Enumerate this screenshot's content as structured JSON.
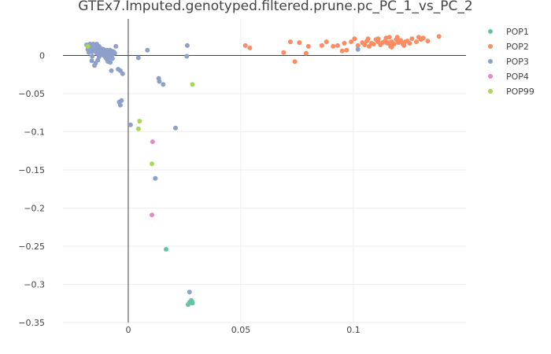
{
  "chart_data": {
    "type": "scatter",
    "title": "GTEx7.Imputed.genotyped.filtered.prune.pc_PC_1_vs_PC_2",
    "xlabel": "",
    "ylabel": "",
    "xlim": [
      -0.029,
      0.15
    ],
    "ylim": [
      -0.35,
      0.048
    ],
    "xticks": [
      0,
      0.05,
      0.1
    ],
    "xtick_labels": [
      "0",
      "0.05",
      "0.1"
    ],
    "yticks": [
      0,
      -0.05,
      -0.1,
      -0.15,
      -0.2,
      -0.25,
      -0.3,
      -0.35
    ],
    "ytick_labels": [
      "0",
      "−0.05",
      "−0.1",
      "−0.15",
      "−0.2",
      "−0.25",
      "−0.3",
      "−0.35"
    ],
    "grid": true,
    "legend_position": "top-right",
    "series": [
      {
        "name": "POP1",
        "color": "#66c2a5",
        "points": [
          [
            0.0168,
            -0.254
          ],
          [
            0.0266,
            -0.3265
          ],
          [
            0.0272,
            -0.3235
          ],
          [
            0.028,
            -0.321
          ],
          [
            0.0285,
            -0.3245
          ],
          [
            0.0276,
            -0.324
          ],
          [
            0.0283,
            -0.3225
          ]
        ]
      },
      {
        "name": "POP2",
        "color": "#fc8d62",
        "points": [
          [
            0.052,
            0.013
          ],
          [
            0.054,
            0.01
          ],
          [
            0.069,
            0.004
          ],
          [
            0.072,
            0.018
          ],
          [
            0.074,
            -0.008
          ],
          [
            0.076,
            0.017
          ],
          [
            0.079,
            0.003
          ],
          [
            0.08,
            0.012
          ],
          [
            0.086,
            0.013
          ],
          [
            0.088,
            0.018
          ],
          [
            0.091,
            0.012
          ],
          [
            0.093,
            0.013
          ],
          [
            0.095,
            0.006
          ],
          [
            0.096,
            0.016
          ],
          [
            0.097,
            0.007
          ],
          [
            0.099,
            0.018
          ],
          [
            0.1005,
            0.022
          ],
          [
            0.102,
            0.013
          ],
          [
            0.104,
            0.017
          ],
          [
            0.105,
            0.014
          ],
          [
            0.106,
            0.019
          ],
          [
            0.107,
            0.012
          ],
          [
            0.108,
            0.016
          ],
          [
            0.109,
            0.015
          ],
          [
            0.11,
            0.021
          ],
          [
            0.111,
            0.018
          ],
          [
            0.112,
            0.014
          ],
          [
            0.113,
            0.017
          ],
          [
            0.114,
            0.019
          ],
          [
            0.115,
            0.016
          ],
          [
            0.116,
            0.024
          ],
          [
            0.117,
            0.018
          ],
          [
            0.117,
            0.011
          ],
          [
            0.118,
            0.015
          ],
          [
            0.119,
            0.021
          ],
          [
            0.12,
            0.017
          ],
          [
            0.121,
            0.02
          ],
          [
            0.122,
            0.015
          ],
          [
            0.123,
            0.018
          ],
          [
            0.124,
            0.019
          ],
          [
            0.125,
            0.016
          ],
          [
            0.126,
            0.022
          ],
          [
            0.128,
            0.018
          ],
          [
            0.129,
            0.024
          ],
          [
            0.13,
            0.021
          ],
          [
            0.131,
            0.023
          ],
          [
            0.133,
            0.019
          ],
          [
            0.138,
            0.025
          ],
          [
            0.111,
            0.022
          ],
          [
            0.1145,
            0.023
          ],
          [
            0.1165,
            0.012
          ],
          [
            0.1195,
            0.024
          ],
          [
            0.1225,
            0.013
          ],
          [
            0.1155,
            0.017
          ],
          [
            0.1065,
            0.022
          ]
        ]
      },
      {
        "name": "POP3",
        "color": "#8da0cb",
        "points": [
          [
            -0.0185,
            0.014
          ],
          [
            -0.018,
            0.008
          ],
          [
            -0.0175,
            0.004
          ],
          [
            -0.0178,
            0.011
          ],
          [
            -0.017,
            0.015
          ],
          [
            -0.0165,
            0.009
          ],
          [
            -0.016,
            0.005
          ],
          [
            -0.0158,
            0.013
          ],
          [
            -0.0155,
            0.015
          ],
          [
            -0.015,
            0.007
          ],
          [
            -0.0145,
            0.01
          ],
          [
            -0.014,
            0.015
          ],
          [
            -0.014,
            0.003
          ],
          [
            -0.0135,
            0.008
          ],
          [
            -0.013,
            0.012
          ],
          [
            -0.0128,
            0.005
          ],
          [
            -0.0125,
            0.001
          ],
          [
            -0.012,
            0.009
          ],
          [
            -0.0118,
            0.006
          ],
          [
            -0.0115,
            0.003
          ],
          [
            -0.011,
            0.008
          ],
          [
            -0.0108,
            0.0
          ],
          [
            -0.0105,
            0.006
          ],
          [
            -0.01,
            0.004
          ],
          [
            -0.0098,
            0.001
          ],
          [
            -0.0095,
            0.007
          ],
          [
            -0.009,
            0.005
          ],
          [
            -0.0088,
            0.0
          ],
          [
            -0.0085,
            0.004
          ],
          [
            -0.0082,
            0.007
          ],
          [
            -0.008,
            -0.002
          ],
          [
            -0.0078,
            0.003
          ],
          [
            -0.0075,
            0.006
          ],
          [
            -0.0072,
            0.001
          ],
          [
            -0.007,
            -0.004
          ],
          [
            -0.0068,
            0.004
          ],
          [
            -0.0065,
            0.005
          ],
          [
            -0.006,
            0.003
          ],
          [
            -0.0055,
            0.012
          ],
          [
            -0.016,
            -0.001
          ],
          [
            -0.0162,
            -0.007
          ],
          [
            -0.015,
            -0.013
          ],
          [
            -0.0145,
            -0.01
          ],
          [
            -0.0135,
            -0.006
          ],
          [
            -0.013,
            -0.002
          ],
          [
            -0.012,
            0.001
          ],
          [
            -0.01,
            -0.003
          ],
          [
            -0.0095,
            -0.005
          ],
          [
            -0.009,
            -0.008
          ],
          [
            -0.0085,
            -0.003
          ],
          [
            -0.008,
            -0.009
          ],
          [
            -0.0075,
            -0.02
          ],
          [
            -0.0045,
            -0.018
          ],
          [
            -0.0035,
            -0.02
          ],
          [
            -0.0025,
            -0.024
          ],
          [
            -0.004,
            -0.061
          ],
          [
            -0.0035,
            -0.065
          ],
          [
            -0.003,
            -0.059
          ],
          [
            0.001,
            -0.091
          ],
          [
            0.0045,
            -0.003
          ],
          [
            0.0085,
            0.007
          ],
          [
            0.0135,
            -0.03
          ],
          [
            0.0138,
            -0.034
          ],
          [
            0.0155,
            -0.038
          ],
          [
            0.021,
            -0.095
          ],
          [
            0.012,
            -0.161
          ],
          [
            0.0262,
            0.013
          ],
          [
            0.026,
            -0.001
          ],
          [
            0.0272,
            -0.31
          ],
          [
            0.102,
            0.008
          ]
        ]
      },
      {
        "name": "POP4",
        "color": "#e78ac3",
        "points": [
          [
            0.0108,
            -0.113
          ],
          [
            0.0105,
            -0.209
          ]
        ]
      },
      {
        "name": "POP99",
        "color": "#a6d854",
        "points": [
          [
            -0.018,
            0.012
          ],
          [
            0.0285,
            -0.038
          ],
          [
            0.005,
            -0.086
          ],
          [
            0.0045,
            -0.096
          ],
          [
            0.0105,
            -0.142
          ]
        ]
      }
    ]
  }
}
